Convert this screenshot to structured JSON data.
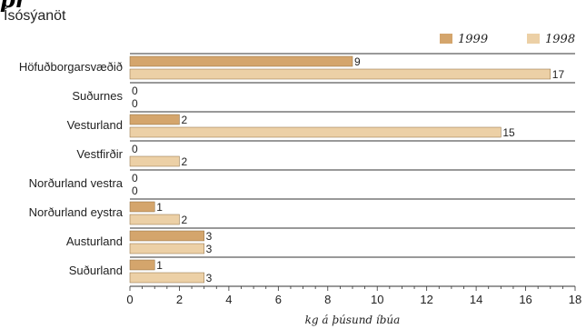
{
  "title_fragment": "pr",
  "chart_data": {
    "type": "bar",
    "orientation": "horizontal",
    "title": "",
    "subtitle": "Ísósýanöt",
    "xlabel": "kg á þúsund íbúa",
    "ylabel": "",
    "xlim": [
      0,
      18
    ],
    "xticks": [
      0,
      2,
      4,
      6,
      8,
      10,
      12,
      14,
      16,
      18
    ],
    "categories": [
      "Höfuðborgarsvæðið",
      "Suðurnes",
      "Vesturland",
      "Vestfirðir",
      "Norðurland vestra",
      "Norðurland eystra",
      "Austurland",
      "Suðurland"
    ],
    "series": [
      {
        "name": "1999",
        "color": "#d4a56c",
        "values": [
          9,
          0,
          2,
          0,
          0,
          1,
          3,
          1
        ]
      },
      {
        "name": "1998",
        "color": "#ecd0a6",
        "values": [
          17,
          0,
          15,
          2,
          0,
          2,
          3,
          3
        ]
      }
    ],
    "legend_position": "top-right",
    "grid": false
  }
}
